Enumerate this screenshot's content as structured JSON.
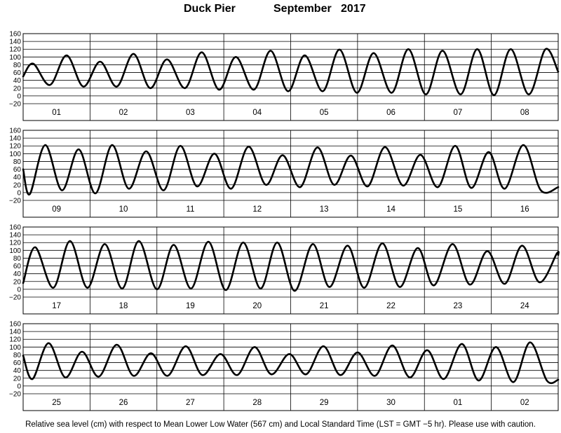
{
  "title": {
    "station": "Duck Pier",
    "month_year": "September   2017"
  },
  "caption": "Relative sea level (cm) with respect to Mean Lower Low Water (567 cm) and Local Standard Time (LST = GMT −5 hr). Please use with caution.",
  "chart_data": [
    {
      "type": "line",
      "days": [
        "01",
        "02",
        "03",
        "04",
        "05",
        "06",
        "07",
        "08"
      ],
      "ylim": [
        -20,
        160
      ],
      "yticks": [
        "160",
        "140",
        "120",
        "100",
        "80",
        "60",
        "40",
        "20",
        "0",
        "−20"
      ],
      "series": [
        {
          "x": [
            0,
            0.15,
            0.4,
            0.65,
            0.9,
            1.15,
            1.4,
            1.65,
            1.9,
            2.15,
            2.42,
            2.67,
            2.93,
            3.18,
            3.45,
            3.7,
            3.96,
            4.21,
            4.48,
            4.73,
            4.99,
            5.24,
            5.51,
            5.76,
            6.02,
            6.27,
            6.54,
            6.79,
            7.04,
            7.29,
            7.56,
            7.81,
            8.0
          ],
          "y": [
            50,
            83,
            28,
            104,
            24,
            88,
            24,
            108,
            20,
            94,
            20,
            112,
            16,
            100,
            16,
            116,
            12,
            104,
            12,
            119,
            8,
            110,
            8,
            120,
            4,
            116,
            4,
            120,
            2,
            120,
            4,
            120,
            62
          ]
        }
      ]
    },
    {
      "type": "line",
      "days": [
        "09",
        "10",
        "11",
        "12",
        "13",
        "14",
        "15",
        "16"
      ],
      "ylim": [
        -20,
        160
      ],
      "yticks": [
        "160",
        "140",
        "120",
        "100",
        "80",
        "60",
        "40",
        "20",
        "0",
        "−20"
      ],
      "series": [
        {
          "x": [
            0,
            0.1,
            0.33,
            0.58,
            0.83,
            1.08,
            1.33,
            1.58,
            1.84,
            2.1,
            2.35,
            2.6,
            2.86,
            3.11,
            3.37,
            3.63,
            3.88,
            4.14,
            4.4,
            4.65,
            4.9,
            5.15,
            5.41,
            5.68,
            5.94,
            6.2,
            6.46,
            6.7,
            6.96,
            7.2,
            7.48,
            7.74,
            8.0
          ],
          "y": [
            60,
            -4,
            122,
            6,
            111,
            -2,
            122,
            10,
            106,
            6,
            120,
            16,
            100,
            10,
            118,
            20,
            96,
            14,
            116,
            20,
            95,
            16,
            117,
            18,
            97,
            14,
            120,
            12,
            104,
            10,
            122,
            6,
            14
          ]
        }
      ]
    },
    {
      "type": "line",
      "days": [
        "17",
        "18",
        "19",
        "20",
        "21",
        "22",
        "23",
        "24"
      ],
      "ylim": [
        -20,
        160
      ],
      "yticks": [
        "160",
        "140",
        "120",
        "100",
        "80",
        "60",
        "40",
        "20",
        "0",
        "−20"
      ],
      "series": [
        {
          "x": [
            0,
            0.18,
            0.45,
            0.7,
            0.96,
            1.22,
            1.48,
            1.73,
            2.0,
            2.25,
            2.51,
            2.77,
            3.03,
            3.29,
            3.55,
            3.8,
            4.06,
            4.33,
            4.58,
            4.85,
            5.1,
            5.37,
            5.63,
            5.9,
            6.14,
            6.42,
            6.68,
            6.94,
            7.2,
            7.46,
            7.72,
            7.98,
            8.0
          ],
          "y": [
            16,
            108,
            4,
            124,
            4,
            116,
            2,
            124,
            0,
            114,
            2,
            122,
            -2,
            120,
            2,
            120,
            -4,
            116,
            6,
            112,
            4,
            118,
            6,
            106,
            10,
            116,
            12,
            98,
            14,
            112,
            18,
            92,
            88
          ]
        }
      ]
    },
    {
      "type": "line",
      "days": [
        "25",
        "26",
        "27",
        "28",
        "29",
        "30",
        "01",
        "02"
      ],
      "ylim": [
        -20,
        160
      ],
      "yticks": [
        "160",
        "140",
        "120",
        "100",
        "80",
        "60",
        "40",
        "20",
        "0",
        "−20"
      ],
      "series": [
        {
          "x": [
            0,
            0.14,
            0.38,
            0.63,
            0.88,
            1.13,
            1.4,
            1.65,
            1.91,
            2.16,
            2.43,
            2.68,
            2.95,
            3.2,
            3.46,
            3.71,
            3.98,
            4.23,
            4.49,
            4.74,
            5.0,
            5.26,
            5.52,
            5.78,
            6.04,
            6.29,
            6.56,
            6.81,
            7.07,
            7.33,
            7.58,
            7.83,
            8.0
          ],
          "y": [
            78,
            18,
            110,
            22,
            88,
            24,
            106,
            26,
            84,
            26,
            102,
            28,
            82,
            28,
            100,
            30,
            82,
            30,
            102,
            28,
            86,
            26,
            104,
            22,
            92,
            18,
            108,
            14,
            100,
            10,
            112,
            14,
            16
          ]
        }
      ]
    }
  ]
}
